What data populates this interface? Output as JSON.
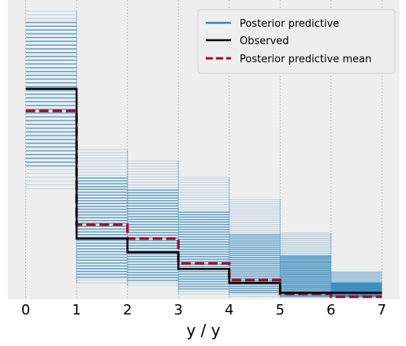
{
  "chart_data": {
    "type": "line",
    "xlabel": "y / y",
    "ylabel": "",
    "xlim": [
      -0.35,
      7.35
    ],
    "ylim": [
      0,
      0.54
    ],
    "x_ticks": [
      0,
      1,
      2,
      3,
      4,
      5,
      6,
      7
    ],
    "x_tick_labels": [
      "0",
      "1",
      "2",
      "3",
      "4",
      "5",
      "6",
      "7"
    ],
    "grid": true,
    "legend_position": "upper right",
    "legend": [
      {
        "label": "Posterior predictive",
        "style": "solid",
        "color": "#348ABD"
      },
      {
        "label": "Observed",
        "style": "solid",
        "color": "#000000"
      },
      {
        "label": "Posterior predictive mean",
        "style": "dashed",
        "color": "#A60628"
      }
    ],
    "bins": [
      0,
      1,
      2,
      3,
      4,
      5,
      6,
      7
    ],
    "observed": [
      0.38,
      0.11,
      0.085,
      0.055,
      0.03,
      0.012,
      0.012
    ],
    "posterior_predictive_mean": [
      0.34,
      0.135,
      0.11,
      0.065,
      0.035,
      0.01,
      0.005
    ],
    "posterior_predictive_ranges": [
      [
        0.2,
        0.52
      ],
      [
        0.03,
        0.27
      ],
      [
        0.025,
        0.25
      ],
      [
        0.01,
        0.22
      ],
      [
        0.005,
        0.18
      ],
      [
        0.005,
        0.12
      ],
      [
        0.005,
        0.05
      ]
    ],
    "posterior_predictive_core_ranges": [
      [
        0.24,
        0.5
      ],
      [
        0.04,
        0.22
      ],
      [
        0.03,
        0.2
      ],
      [
        0.015,
        0.16
      ],
      [
        0.01,
        0.12
      ],
      [
        0.005,
        0.08
      ],
      [
        0.005,
        0.03
      ]
    ],
    "posterior_predictive_sample_count": 48,
    "colors": {
      "posterior_predictive": "#348ABD",
      "observed": "#000000",
      "posterior_predictive_mean": "#A60628",
      "axes_background": "#EEEEEE",
      "grid": "#B0B0B0"
    }
  }
}
